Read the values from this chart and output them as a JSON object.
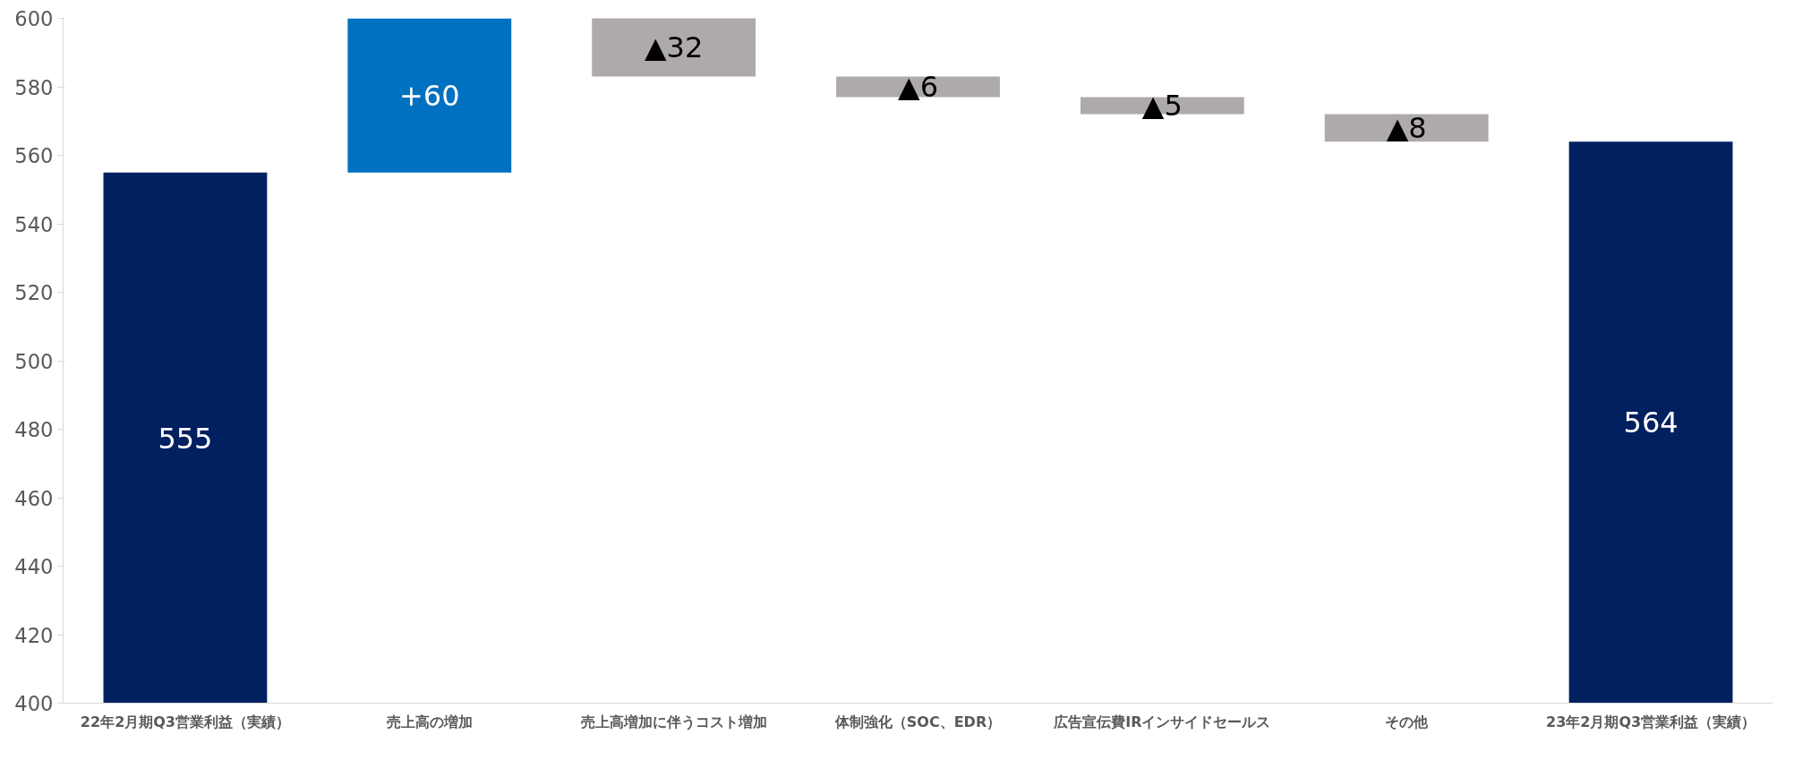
{
  "chart_data": {
    "type": "bar",
    "categories": [
      "22年2月期Q3営業利益（実績）",
      "売上高の増加",
      "売上高増加に伴うコスト増加",
      "体制強化（SOC、EDR）",
      "広告宣伝費IRインサイドセールス",
      "その他",
      "23年2月期Q3営業利益（実績）"
    ],
    "base": [
      400,
      555,
      615,
      583,
      577,
      572,
      400
    ],
    "values": [
      155,
      60,
      -32,
      -6,
      -5,
      -8,
      164
    ],
    "colors": [
      "#002060",
      "#0070c0",
      "#aeaaaa",
      "#aeaaaa",
      "#aeaaaa",
      "#aeaaaa",
      "#002060"
    ],
    "value_labels": [
      "555",
      "+60",
      "▲32",
      "▲6",
      "▲5",
      "▲8",
      "564"
    ],
    "ylim": [
      400,
      600
    ],
    "yticks": [
      400,
      420,
      440,
      460,
      480,
      500,
      520,
      540,
      560,
      580,
      600
    ],
    "grid": false
  }
}
